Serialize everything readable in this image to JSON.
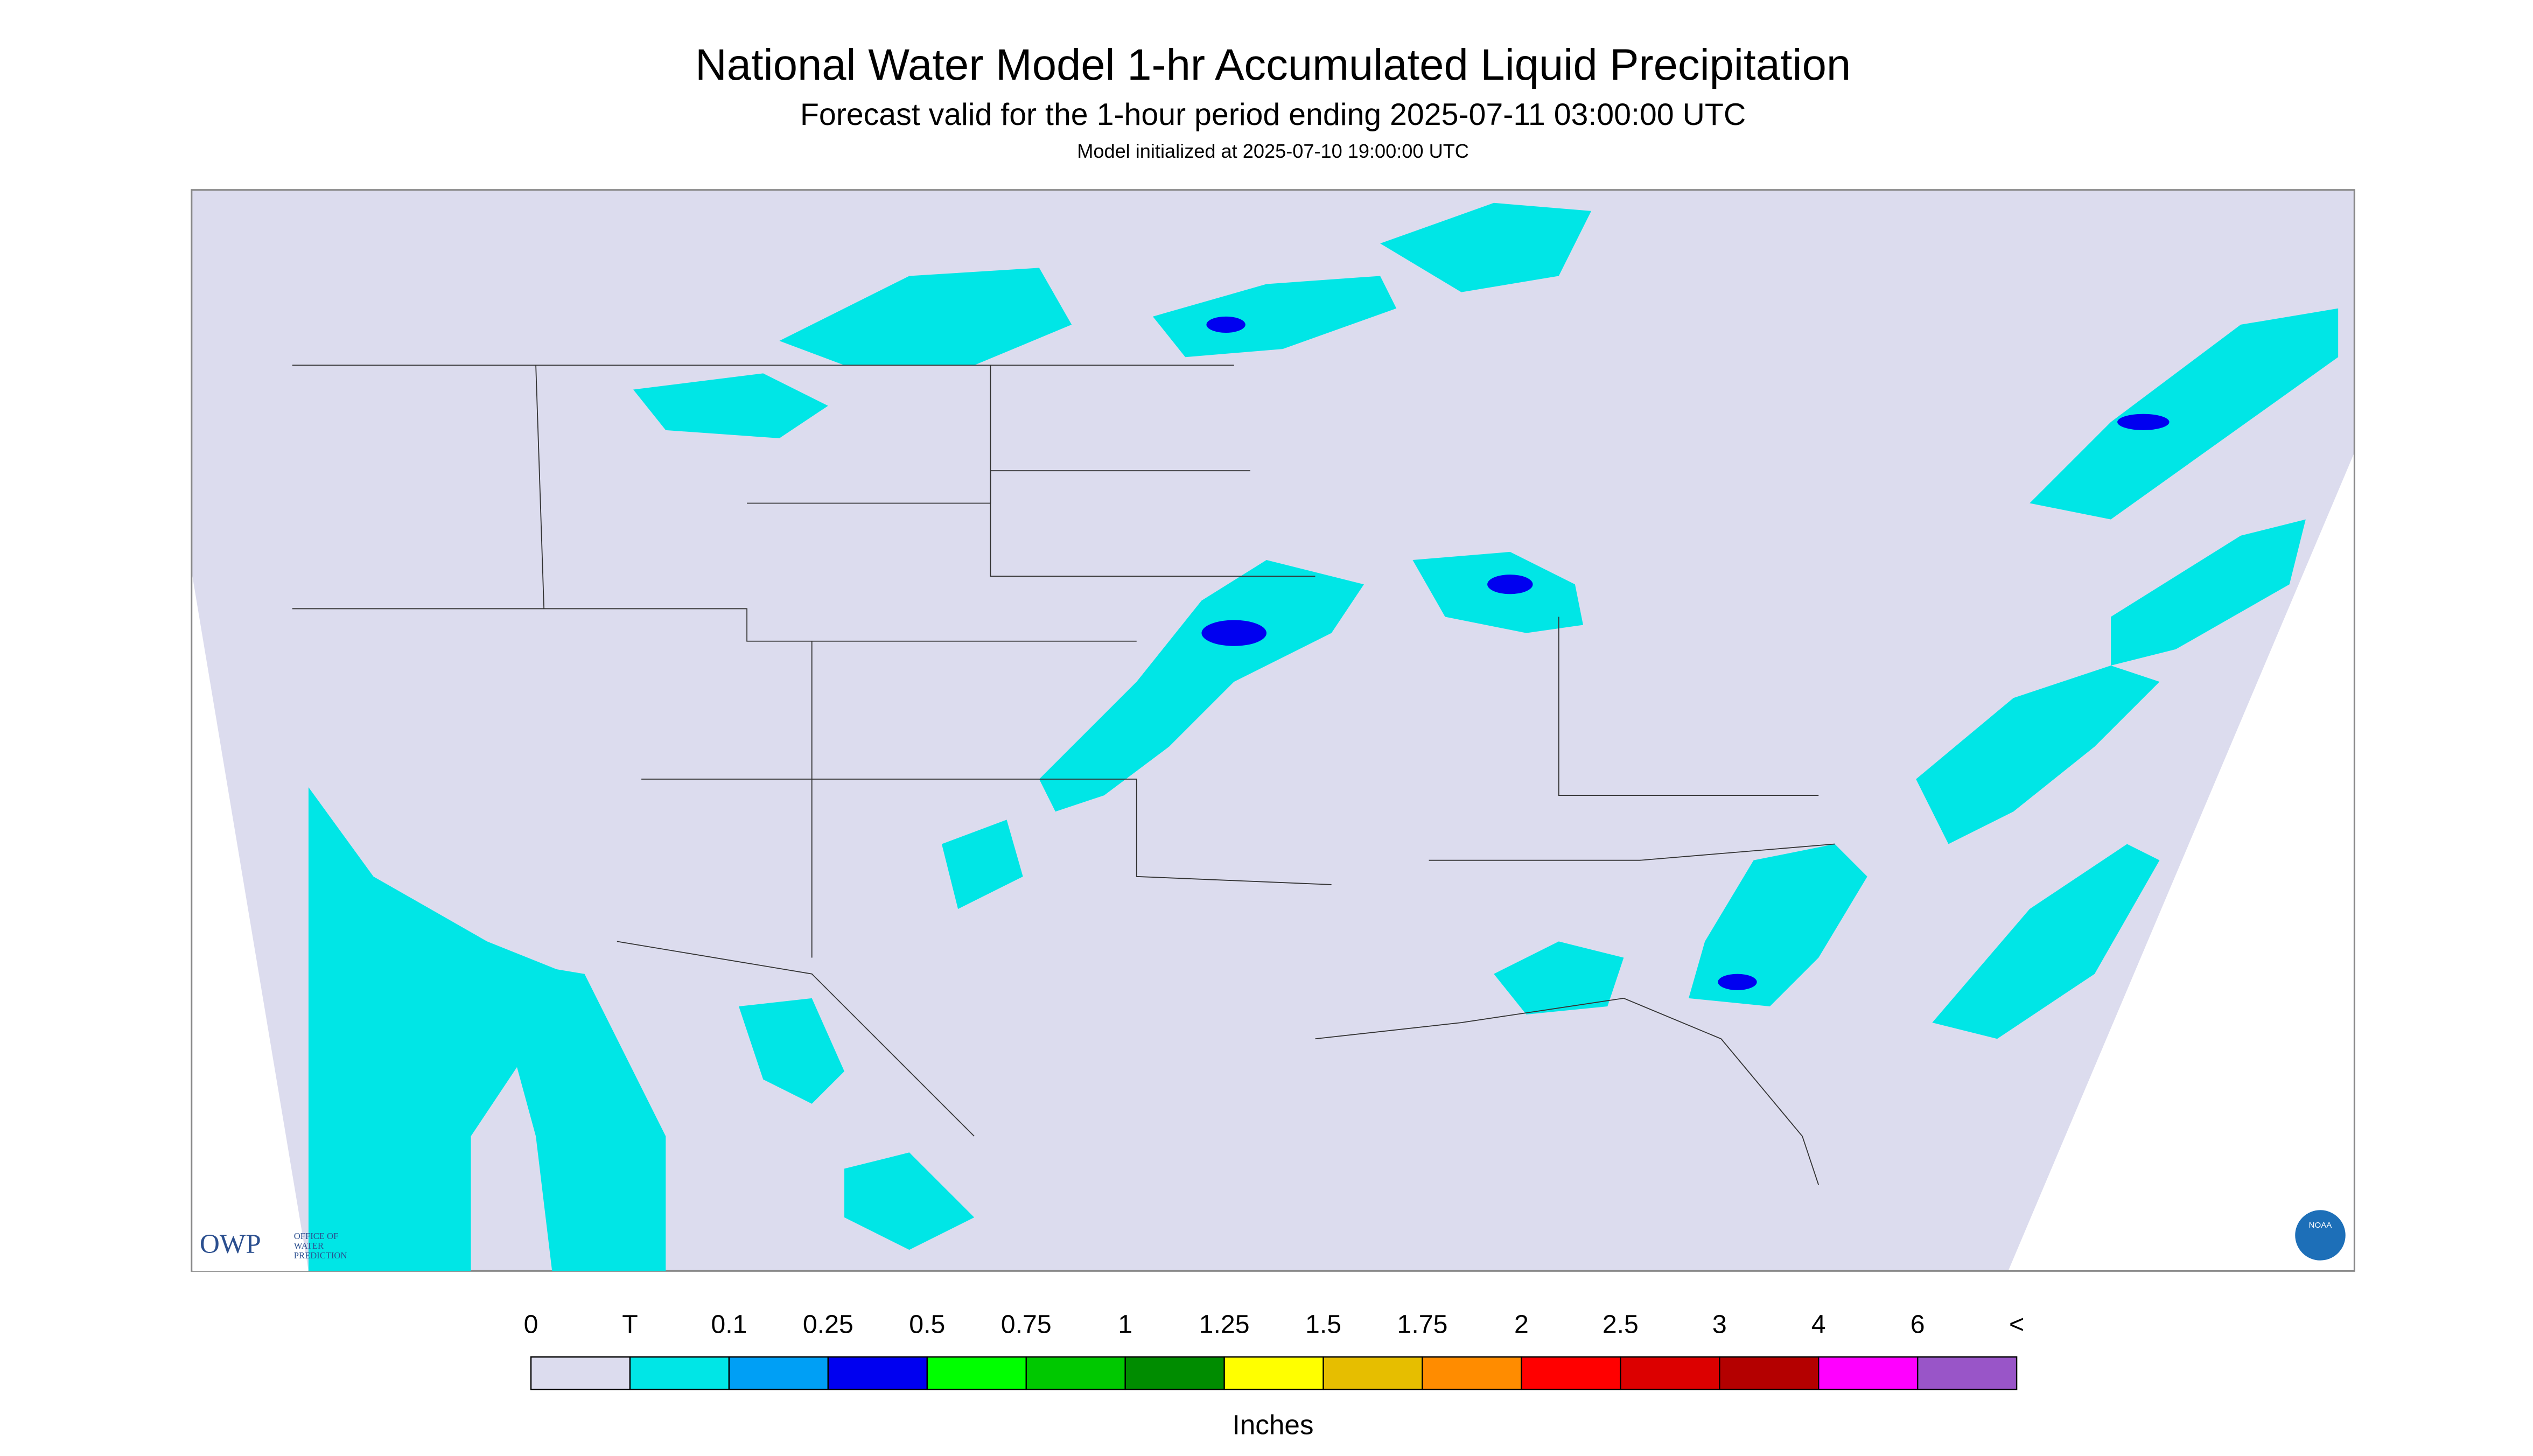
{
  "header": {
    "title": "National Water Model 1-hr Accumulated Liquid Precipitation",
    "subtitle": "Forecast valid for the 1-hour period ending 2025-07-11 03:00:00 UTC",
    "note": "Model initialized at 2025-07-10 19:00:00 UTC"
  },
  "logos": {
    "owp": "OWP",
    "owp_lines": [
      "OFFICE OF",
      "WATER",
      "PREDICTION"
    ],
    "noaa": "NOAA"
  },
  "legend": {
    "labels": [
      "0",
      "T",
      "0.1",
      "0.25",
      "0.5",
      "0.75",
      "1",
      "1.25",
      "1.5",
      "1.75",
      "2",
      "2.5",
      "3",
      "4",
      "6",
      "<"
    ],
    "colors": [
      "#dcdcee",
      "#00e6e6",
      "#009ff5",
      "#0000f0",
      "#00ff00",
      "#00c800",
      "#008c00",
      "#ffff00",
      "#e6be00",
      "#ff8c00",
      "#ff0000",
      "#dc0000",
      "#b40000",
      "#ff00ff",
      "#9955c8"
    ],
    "unit": "Inches"
  }
}
